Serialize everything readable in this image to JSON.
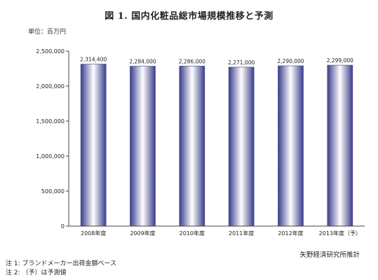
{
  "title": "図 1.  国内化粧品総市場規模推移と予測",
  "unit_label": "単位：百万円",
  "source": "矢野経済研究所推計",
  "notes": [
    "注 1:  ブランドメーカー出荷金額ベース",
    "注 2:  （予）は予測値"
  ],
  "colors": {
    "bar_edge": "#3a3d8c",
    "bar_center": "#ffffff",
    "axis": "#444444"
  },
  "chart_data": {
    "type": "bar",
    "categories": [
      "2008年度",
      "2009年度",
      "2010年度",
      "2011年度",
      "2012年度",
      "2013年度（予）"
    ],
    "values": [
      2314400,
      2284000,
      2286000,
      2271000,
      2290000,
      2299000
    ],
    "data_labels": [
      "2,314,400",
      "2,284,000",
      "2,286,000",
      "2,271,000",
      "2,290,000",
      "2,299,000"
    ],
    "ylim": [
      0,
      2500000
    ],
    "yticks": [
      0,
      500000,
      1000000,
      1500000,
      2000000,
      2500000
    ],
    "ytick_labels": [
      "0",
      "500,000",
      "1,000,000",
      "1,500,000",
      "2,000,000",
      "2,500,000"
    ],
    "grid": false,
    "legend": "none"
  }
}
